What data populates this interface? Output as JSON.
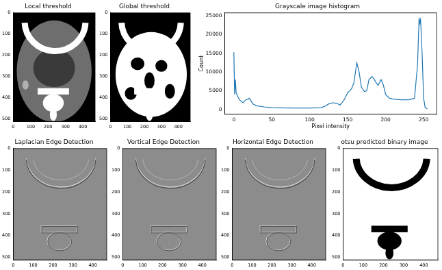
{
  "chart_data": [
    {
      "type": "image",
      "title": "Local threshold",
      "xlim": [
        0,
        470
      ],
      "ylim": [
        512,
        0
      ],
      "xticks": [
        0,
        100,
        200,
        300,
        400
      ],
      "yticks": [
        0,
        100,
        200,
        300,
        400,
        500
      ],
      "grid": false
    },
    {
      "type": "image",
      "title": "Global threshold",
      "xlim": [
        0,
        470
      ],
      "ylim": [
        512,
        0
      ],
      "xticks": [
        0,
        100,
        200,
        300,
        400
      ],
      "yticks": [
        0,
        100,
        200,
        300,
        400,
        500
      ],
      "grid": false
    },
    {
      "type": "line",
      "title": "Grayscale image histogram",
      "x_label": "Pixel intensity",
      "y_label": "Count",
      "x": [
        0,
        1,
        2,
        3,
        5,
        8,
        12,
        15,
        18,
        20,
        22,
        25,
        30,
        40,
        50,
        60,
        80,
        100,
        115,
        120,
        125,
        130,
        135,
        140,
        145,
        150,
        155,
        158,
        162,
        165,
        168,
        172,
        175,
        178,
        182,
        185,
        188,
        190,
        194,
        197,
        200,
        205,
        210,
        220,
        230,
        238,
        242,
        244,
        245,
        246,
        248,
        250,
        252,
        255
      ],
      "values": [
        15300,
        4000,
        8000,
        4500,
        3500,
        2500,
        1800,
        2500,
        2700,
        3000,
        2500,
        1500,
        1000,
        700,
        500,
        450,
        400,
        400,
        500,
        900,
        1500,
        1800,
        1700,
        1200,
        2500,
        4500,
        5500,
        7000,
        12500,
        10000,
        6000,
        4800,
        5000,
        8000,
        8800,
        8000,
        7000,
        6500,
        8000,
        6500,
        4000,
        3000,
        2800,
        2600,
        2600,
        3000,
        12000,
        24500,
        23000,
        24000,
        15000,
        3000,
        500,
        200
      ],
      "color": "#1f77b4",
      "xlim": [
        -12,
        267
      ],
      "ylim": [
        -1200,
        25800
      ],
      "xticks": [
        0,
        50,
        100,
        150,
        200,
        250
      ],
      "yticks": [
        0,
        5000,
        10000,
        15000,
        20000,
        25000
      ],
      "grid": false
    },
    {
      "type": "image",
      "title": "Laplacian Edge Detection",
      "xlim": [
        0,
        470
      ],
      "ylim": [
        512,
        0
      ],
      "xticks": [
        0,
        100,
        200,
        300,
        400
      ],
      "yticks": [
        0,
        100,
        200,
        300,
        400,
        500
      ],
      "grid": false
    },
    {
      "type": "image",
      "title": "Vertical Edge Detection",
      "xlim": [
        0,
        470
      ],
      "ylim": [
        512,
        0
      ],
      "xticks": [
        0,
        100,
        200,
        300,
        400
      ],
      "yticks": [
        0,
        100,
        200,
        300,
        400,
        500
      ],
      "grid": false
    },
    {
      "type": "image",
      "title": "Horizontal Edge Detection",
      "xlim": [
        0,
        470
      ],
      "ylim": [
        512,
        0
      ],
      "xticks": [
        0,
        100,
        200,
        300,
        400
      ],
      "yticks": [
        0,
        100,
        200,
        300,
        400,
        500
      ],
      "grid": false
    },
    {
      "type": "image",
      "title": "otsu predicted binary image",
      "xlim": [
        0,
        470
      ],
      "ylim": [
        512,
        0
      ],
      "xticks": [
        0,
        100,
        200,
        300,
        400
      ],
      "yticks": [
        0,
        100,
        200,
        300,
        400,
        500
      ],
      "grid": false
    }
  ]
}
